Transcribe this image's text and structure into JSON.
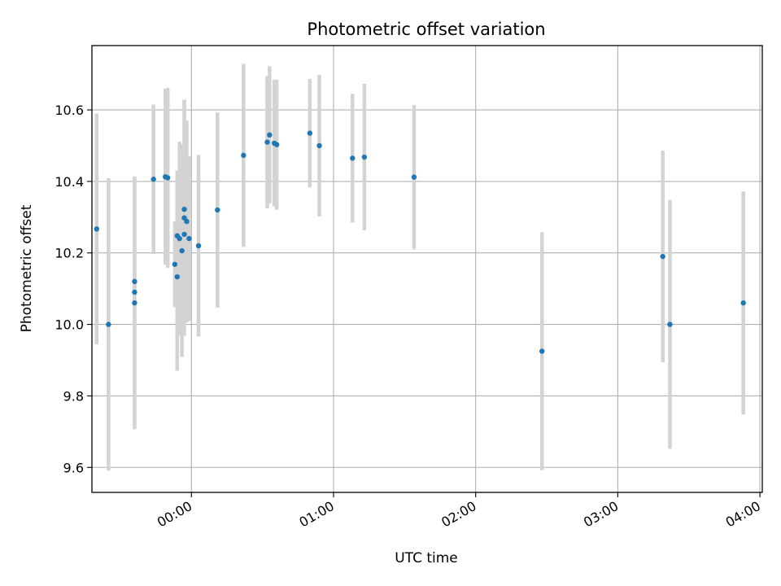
{
  "chart_data": {
    "type": "scatter",
    "title": "Photometric offset variation",
    "xlabel": "UTC time",
    "ylabel": "Photometric offset",
    "x_unit": "UTC time (HH:MM), error bars show uncertainty",
    "xlim": [
      "-00:42",
      "04:01"
    ],
    "ylim": [
      9.53,
      10.78
    ],
    "x_ticks": [
      "00:00",
      "01:00",
      "02:00",
      "03:00",
      "04:00"
    ],
    "y_ticks": [
      "9.6",
      "9.8",
      "10.0",
      "10.2",
      "10.4",
      "10.6"
    ],
    "grid": true,
    "colors": {
      "points": "#1f77b4",
      "errorbars": "#d3d3d3",
      "grid": "#b0b0b0"
    },
    "points": [
      {
        "x": "-00:40",
        "y": 10.267,
        "err": 0.323
      },
      {
        "x": "-00:35",
        "y": 10.0,
        "err": 0.409
      },
      {
        "x": "-00:24",
        "y": 10.09,
        "err": 0.26
      },
      {
        "x": "-00:24",
        "y": 10.12,
        "err": 0.294
      },
      {
        "x": "-00:24",
        "y": 10.06,
        "err": 0.353
      },
      {
        "x": "-00:16",
        "y": 10.406,
        "err": 0.209
      },
      {
        "x": "-00:11",
        "y": 10.413,
        "err": 0.246
      },
      {
        "x": "-00:10",
        "y": 10.41,
        "err": 0.252
      },
      {
        "x": "-00:07",
        "y": 10.168,
        "err": 0.12
      },
      {
        "x": "-00:06",
        "y": 10.133,
        "err": 0.263
      },
      {
        "x": "-00:06",
        "y": 10.248,
        "err": 0.182
      },
      {
        "x": "-00:05",
        "y": 10.24,
        "err": 0.271
      },
      {
        "x": "-00:04",
        "y": 10.206,
        "err": 0.297
      },
      {
        "x": "-00:03",
        "y": 10.298,
        "err": 0.33
      },
      {
        "x": "-00:03",
        "y": 10.322,
        "err": 0.307
      },
      {
        "x": "-00:03",
        "y": 10.252,
        "err": 0.223
      },
      {
        "x": "-00:02",
        "y": 10.288,
        "err": 0.282
      },
      {
        "x": "-00:01",
        "y": 10.24,
        "err": 0.231
      },
      {
        "x": "00:03",
        "y": 10.22,
        "err": 0.254
      },
      {
        "x": "00:11",
        "y": 10.32,
        "err": 0.273
      },
      {
        "x": "00:22",
        "y": 10.473,
        "err": 0.256
      },
      {
        "x": "00:32",
        "y": 10.51,
        "err": 0.185
      },
      {
        "x": "00:33",
        "y": 10.53,
        "err": 0.192
      },
      {
        "x": "00:35",
        "y": 10.507,
        "err": 0.177
      },
      {
        "x": "00:36",
        "y": 10.503,
        "err": 0.182
      },
      {
        "x": "00:50",
        "y": 10.535,
        "err": 0.152
      },
      {
        "x": "00:54",
        "y": 10.5,
        "err": 0.198
      },
      {
        "x": "01:08",
        "y": 10.465,
        "err": 0.18
      },
      {
        "x": "01:13",
        "y": 10.468,
        "err": 0.205
      },
      {
        "x": "01:34",
        "y": 10.412,
        "err": 0.202
      },
      {
        "x": "02:28",
        "y": 9.925,
        "err": 0.333
      },
      {
        "x": "03:19",
        "y": 10.19,
        "err": 0.296
      },
      {
        "x": "03:22",
        "y": 10.0,
        "err": 0.348
      },
      {
        "x": "03:53",
        "y": 10.06,
        "err": 0.312
      }
    ]
  }
}
